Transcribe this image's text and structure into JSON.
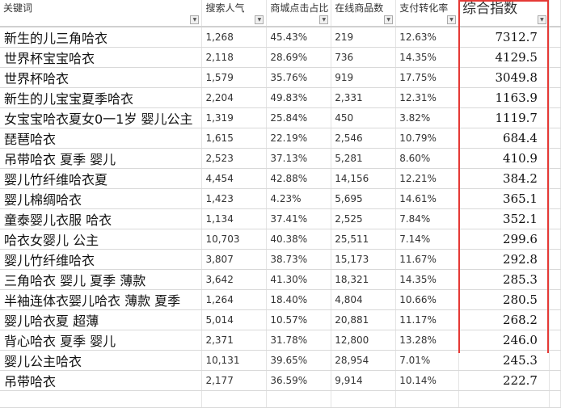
{
  "headers": [
    "关键词",
    "搜索人气",
    "商城点击占比",
    "在线商品数",
    "支付转化率",
    "综合指数"
  ],
  "highlight_color": "#e53935",
  "rows": [
    [
      "新生的儿三角哈衣",
      "1,268",
      "45.43%",
      "219",
      "12.63%",
      "7312.7"
    ],
    [
      "世界杯宝宝哈衣",
      "2,118",
      "28.69%",
      "736",
      "14.35%",
      "4129.5"
    ],
    [
      "世界杯哈衣",
      "1,579",
      "35.76%",
      "919",
      "17.75%",
      "3049.8"
    ],
    [
      "新生的儿宝宝夏季哈衣",
      "2,204",
      "49.83%",
      "2,331",
      "12.31%",
      "1163.9"
    ],
    [
      "女宝宝哈衣夏女0一1岁 婴儿公主",
      "1,319",
      "25.84%",
      "450",
      "3.82%",
      "1119.7"
    ],
    [
      "琵琶哈衣",
      "1,615",
      "22.19%",
      "2,546",
      "10.79%",
      "684.4"
    ],
    [
      "吊带哈衣 夏季 婴儿",
      "2,523",
      "37.13%",
      "5,281",
      "8.60%",
      "410.9"
    ],
    [
      "婴儿竹纤维哈衣夏",
      "4,454",
      "42.88%",
      "14,156",
      "12.21%",
      "384.2"
    ],
    [
      "婴儿棉绸哈衣",
      "1,423",
      "4.23%",
      "5,695",
      "14.61%",
      "365.1"
    ],
    [
      "童泰婴儿衣服 哈衣",
      "1,134",
      "37.41%",
      "2,525",
      "7.84%",
      "352.1"
    ],
    [
      "哈衣女婴儿 公主",
      "10,703",
      "40.38%",
      "25,511",
      "7.14%",
      "299.6"
    ],
    [
      "婴儿竹纤维哈衣",
      "3,807",
      "38.73%",
      "15,173",
      "11.67%",
      "292.8"
    ],
    [
      "三角哈衣 婴儿 夏季 薄款",
      "3,642",
      "41.30%",
      "18,321",
      "14.35%",
      "285.3"
    ],
    [
      "半袖连体衣婴儿哈衣 薄款 夏季",
      "1,264",
      "18.40%",
      "4,804",
      "10.66%",
      "280.5"
    ],
    [
      "婴儿哈衣夏 超薄",
      "5,014",
      "10.57%",
      "20,881",
      "11.17%",
      "268.2"
    ],
    [
      "背心哈衣 夏季 婴儿",
      "2,371",
      "31.78%",
      "12,800",
      "13.28%",
      "246.0"
    ],
    [
      "婴儿公主哈衣",
      "10,131",
      "39.65%",
      "28,954",
      "7.01%",
      "245.3"
    ],
    [
      "吊带哈衣",
      "2,177",
      "36.59%",
      "9,914",
      "10.14%",
      "222.7"
    ]
  ]
}
